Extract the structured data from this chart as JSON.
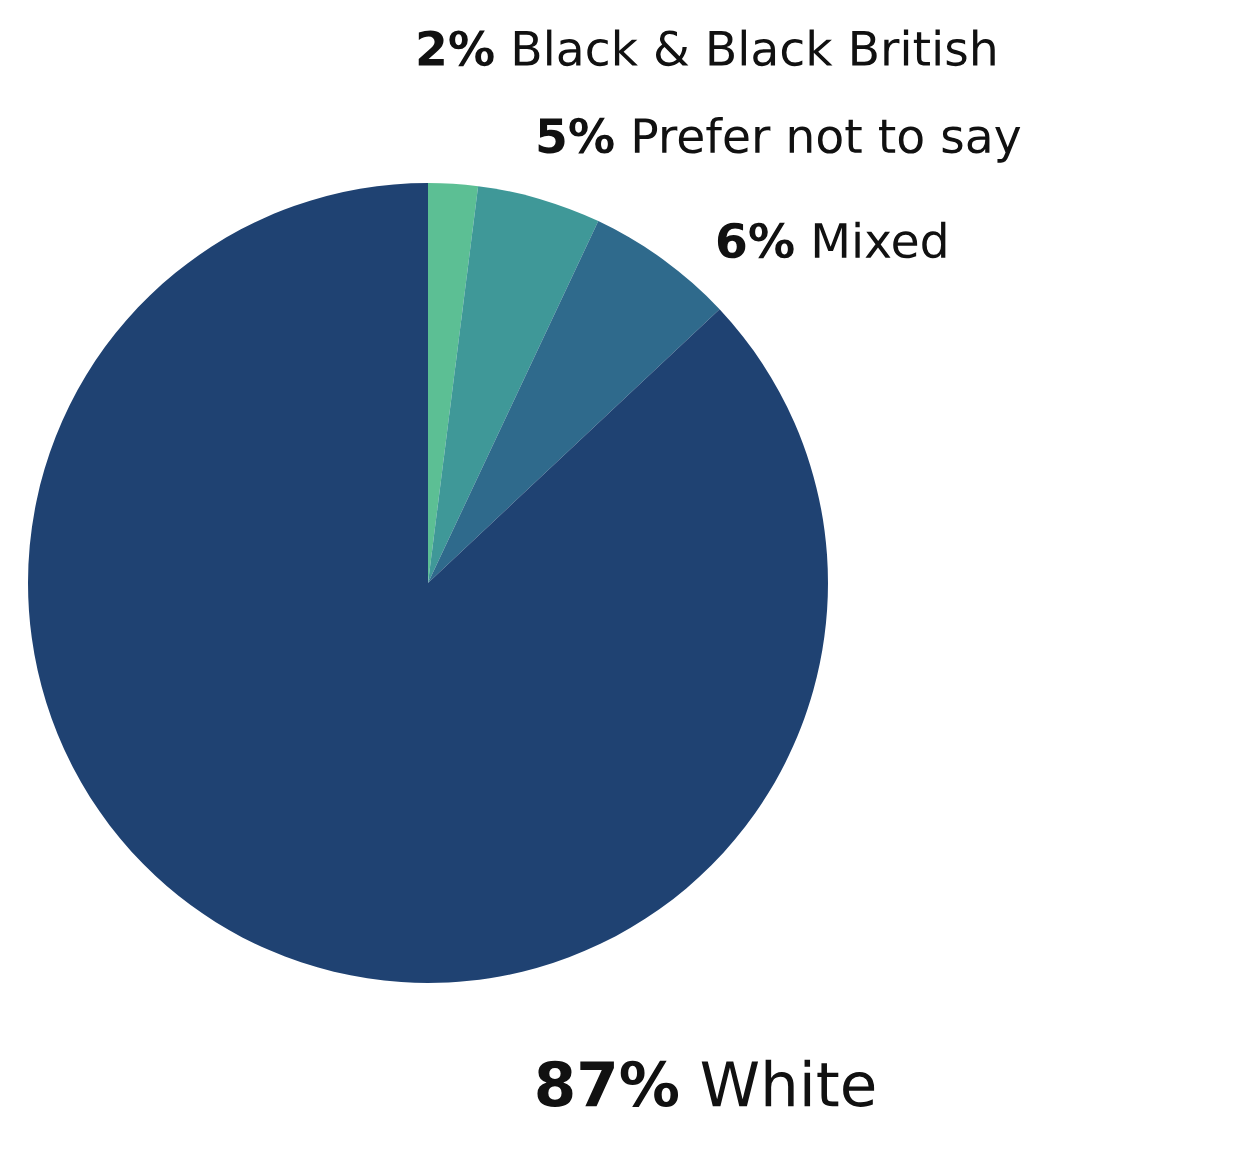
{
  "chart_data": {
    "type": "pie",
    "categories": [
      "Black & Black British",
      "Prefer not to say",
      "Mixed",
      "White"
    ],
    "values": [
      2,
      5,
      6,
      87
    ],
    "value_labels": [
      "2%",
      "5%",
      "6%",
      "87%"
    ],
    "colors": [
      "#5cbf94",
      "#3f9898",
      "#2f6a8c",
      "#1f4272"
    ]
  }
}
